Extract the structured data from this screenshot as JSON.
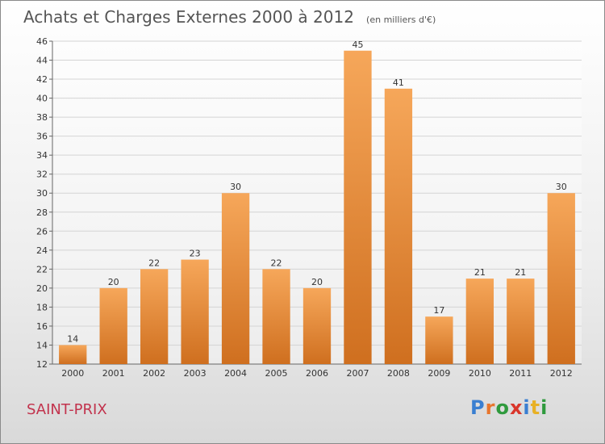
{
  "header": {
    "title": "Achats et Charges Externes 2000 à 2012",
    "subtitle": "(en milliers d'€)"
  },
  "footer": {
    "city": "SAINT-PRIX",
    "logo": {
      "letters": [
        "P",
        "r",
        "o",
        "x",
        "i",
        "t",
        "i"
      ],
      "colors": [
        "#3a7fd1",
        "#e8762d",
        "#2f9a3d",
        "#d9362b",
        "#3a7fd1",
        "#e8b125",
        "#2f9a3d"
      ]
    }
  },
  "chart_data": {
    "type": "bar",
    "categories": [
      "2000",
      "2001",
      "2002",
      "2003",
      "2004",
      "2005",
      "2006",
      "2007",
      "2008",
      "2009",
      "2010",
      "2011",
      "2012"
    ],
    "values": [
      14,
      20,
      22,
      23,
      30,
      22,
      20,
      45,
      41,
      17,
      21,
      21,
      30
    ],
    "title": "Achats et Charges Externes 2000 à 2012",
    "subtitle": "(en milliers d'€)",
    "ylim": [
      12,
      46
    ],
    "yticks": [
      12,
      14,
      16,
      18,
      20,
      22,
      24,
      26,
      28,
      30,
      32,
      34,
      36,
      38,
      40,
      42,
      44,
      46
    ],
    "grid": true,
    "colors": {
      "bar_light": "#f6a75a",
      "bar_dark": "#cf6f1f",
      "grid": "#d4d4d4",
      "axis": "#666666"
    }
  }
}
